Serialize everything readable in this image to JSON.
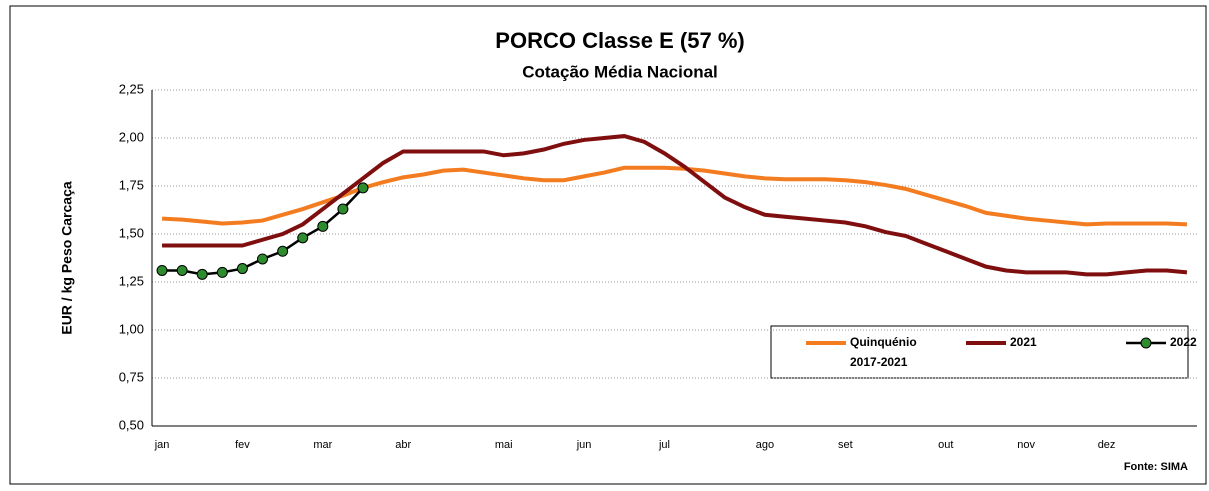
{
  "chart_data": {
    "type": "line",
    "title": "PORCO Classe E (57 %)",
    "subtitle": "Cotação Média Nacional",
    "y_label": "EUR / kg Peso Carcaça",
    "source": "Fonte: SIMA",
    "categories": [
      "jan",
      null,
      null,
      null,
      "fev",
      null,
      null,
      null,
      "mar",
      null,
      null,
      null,
      "abr",
      null,
      null,
      null,
      null,
      "mai",
      null,
      null,
      null,
      "jun",
      null,
      null,
      null,
      "jul",
      null,
      null,
      null,
      null,
      "ago",
      null,
      null,
      null,
      "set",
      null,
      null,
      null,
      null,
      "out",
      null,
      null,
      null,
      "nov",
      null,
      null,
      null,
      "dez",
      null,
      null,
      null,
      null
    ],
    "ylim": [
      0.5,
      2.25
    ],
    "yticks": [
      {
        "value": 0.5,
        "label": "0,50"
      },
      {
        "value": 0.75,
        "label": "0,75"
      },
      {
        "value": 1,
        "label": "1,00"
      },
      {
        "value": 1.25,
        "label": "1,25"
      },
      {
        "value": 1.5,
        "label": "1,50"
      },
      {
        "value": 1.75,
        "label": "1,75"
      },
      {
        "value": 2,
        "label": "2,00"
      },
      {
        "value": 2.25,
        "label": "2,25"
      }
    ],
    "grid": true,
    "series": [
      {
        "name": "Quinquénio 2017-2021",
        "color": "#f47c20",
        "markers": false,
        "values": [
          1.58,
          1.575,
          1.565,
          1.555,
          1.56,
          1.57,
          1.6,
          1.63,
          1.665,
          1.7,
          1.74,
          1.77,
          1.795,
          1.81,
          1.83,
          1.835,
          1.82,
          1.805,
          1.79,
          1.78,
          1.78,
          1.8,
          1.82,
          1.845,
          1.845,
          1.845,
          1.84,
          1.83,
          1.815,
          1.8,
          1.79,
          1.785,
          1.785,
          1.785,
          1.78,
          1.77,
          1.755,
          1.735,
          1.705,
          1.675,
          1.645,
          1.61,
          1.595,
          1.58,
          1.57,
          1.56,
          1.55,
          1.555,
          1.555,
          1.555,
          1.555,
          1.55
        ]
      },
      {
        "name": "2021",
        "color": "#7f0f0f",
        "markers": false,
        "values": [
          1.44,
          1.44,
          1.44,
          1.44,
          1.44,
          1.47,
          1.5,
          1.55,
          1.63,
          1.71,
          1.79,
          1.87,
          1.93,
          1.93,
          1.93,
          1.93,
          1.93,
          1.91,
          1.92,
          1.94,
          1.97,
          1.99,
          2.0,
          2.01,
          1.98,
          1.92,
          1.85,
          1.77,
          1.69,
          1.64,
          1.6,
          1.59,
          1.58,
          1.57,
          1.56,
          1.54,
          1.51,
          1.49,
          1.45,
          1.41,
          1.37,
          1.33,
          1.31,
          1.3,
          1.3,
          1.3,
          1.29,
          1.29,
          1.3,
          1.31,
          1.31,
          1.3
        ]
      },
      {
        "name": "2022",
        "color": "#000000",
        "marker_color": "#2e8b2e",
        "markers": true,
        "values": [
          1.31,
          1.31,
          1.29,
          1.3,
          1.32,
          1.37,
          1.41,
          1.48,
          1.54,
          1.63,
          1.74,
          null,
          null,
          null,
          null,
          null,
          null,
          null,
          null,
          null,
          null,
          null,
          null,
          null,
          null,
          null,
          null,
          null,
          null,
          null,
          null,
          null,
          null,
          null,
          null,
          null,
          null,
          null,
          null,
          null,
          null,
          null,
          null,
          null,
          null,
          null,
          null,
          null,
          null,
          null,
          null,
          null
        ]
      }
    ]
  }
}
